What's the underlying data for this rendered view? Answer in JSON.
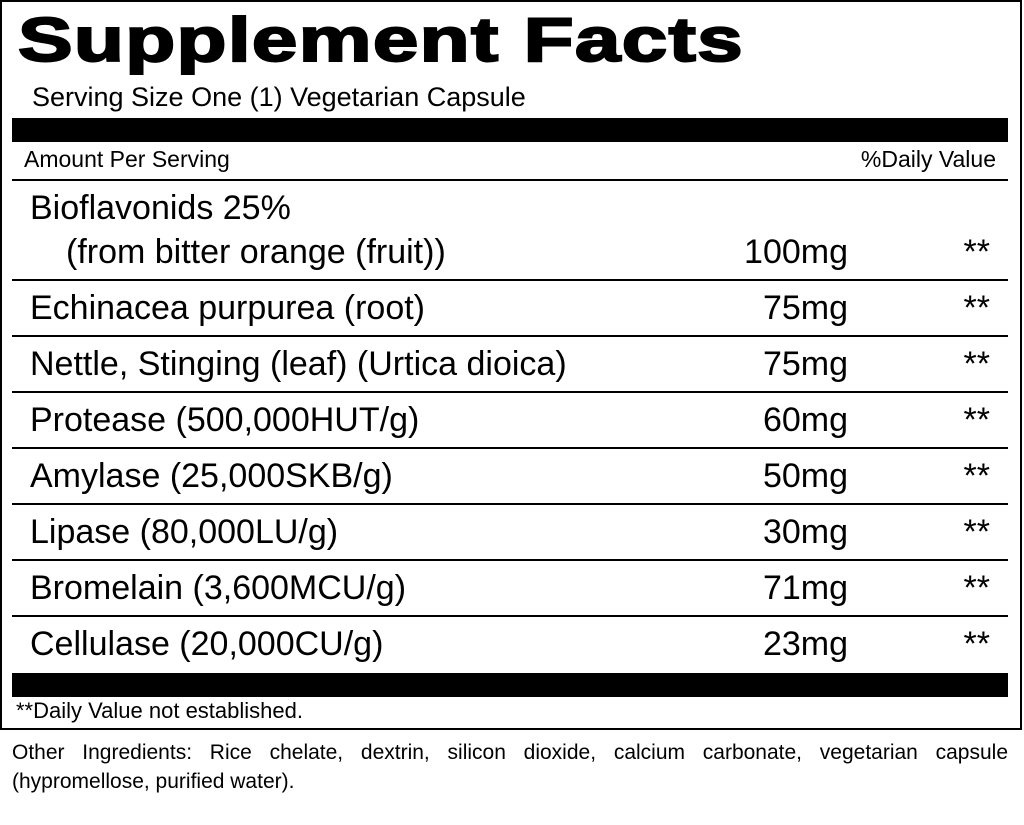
{
  "title": "Supplement Facts",
  "serving_size": "Serving Size One (1) Vegetarian Capsule",
  "header": {
    "amount": "Amount Per Serving",
    "daily_value": "%Daily Value"
  },
  "rows": [
    {
      "name": "Bioflavonids 25%",
      "source": "(from bitter orange (fruit))",
      "amount": "100mg",
      "daily_value": "**"
    },
    {
      "name": "Echinacea purpurea (root)",
      "amount": "75mg",
      "daily_value": "**"
    },
    {
      "name": "Nettle, Stinging (leaf) (Urtica dioica)",
      "amount": "75mg",
      "daily_value": "**"
    },
    {
      "name": "Protease (500,000HUT/g)",
      "amount": "60mg",
      "daily_value": "**"
    },
    {
      "name": "Amylase (25,000SKB/g)",
      "amount": "50mg",
      "daily_value": "**"
    },
    {
      "name": "Lipase (80,000LU/g)",
      "amount": "30mg",
      "daily_value": "**"
    },
    {
      "name": "Bromelain (3,600MCU/g)",
      "amount": "71mg",
      "daily_value": "**"
    },
    {
      "name": "Cellulase (20,000CU/g)",
      "amount": "23mg",
      "daily_value": "**"
    }
  ],
  "footnote": "**Daily Value not established.",
  "other_ingredients": "Other Ingredients: Rice chelate, dextrin, silicon dioxide, calcium carbonate, vegetarian capsule (hypromellose, purified water)."
}
